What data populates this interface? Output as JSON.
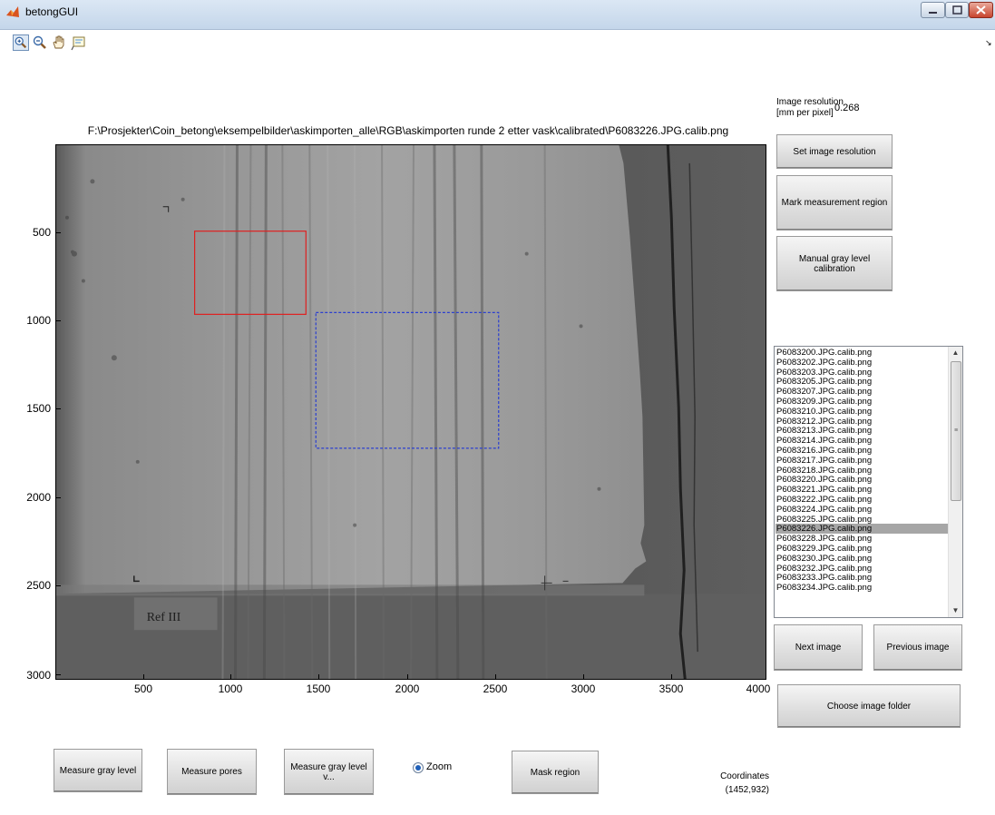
{
  "window": {
    "title": "betongGUI",
    "controls": [
      "minimize-icon",
      "maximize-icon",
      "close-icon"
    ]
  },
  "toolbar": {
    "tools": [
      "zoom-in-icon",
      "zoom-out-icon",
      "pan-hand-icon",
      "data-cursor-icon"
    ],
    "dock_arrow": "↘"
  },
  "image": {
    "path": "F:\\Prosjekter\\Coin_betong\\eksempelbilder\\askimporten_alle\\RGB\\askimporten runde 2 etter vask\\calibrated\\P6083226.JPG.calib.png",
    "sample_label": "Ref III",
    "y_ticks": [
      "500",
      "1000",
      "1500",
      "2000",
      "2500",
      "3000"
    ],
    "x_ticks": [
      "500",
      "1000",
      "1500",
      "2000",
      "2500",
      "3000",
      "3500",
      "4000"
    ],
    "region_colors": {
      "measurement": "#e02020",
      "selection": "#2b3fd0"
    }
  },
  "resolution": {
    "label_line1": "Image resolution",
    "label_line2": "[mm per pixel]",
    "value": "0.268"
  },
  "buttons": {
    "set_resolution": "Set image resolution",
    "mark_region": "Mark measurement region",
    "manual_calibration": "Manual gray level calibration",
    "next_image": "Next image",
    "previous_image": "Previous image",
    "choose_folder": "Choose image folder",
    "measure_gray": "Measure gray level",
    "measure_pores": "Measure pores",
    "measure_gray_v": "Measure gray level v...",
    "mask_region": "Mask region"
  },
  "file_list": {
    "selected": "P6083226.JPG.calib.png",
    "items": [
      "P6083200.JPG.calib.png",
      "P6083202.JPG.calib.png",
      "P6083203.JPG.calib.png",
      "P6083205.JPG.calib.png",
      "P6083207.JPG.calib.png",
      "P6083209.JPG.calib.png",
      "P6083210.JPG.calib.png",
      "P6083212.JPG.calib.png",
      "P6083213.JPG.calib.png",
      "P6083214.JPG.calib.png",
      "P6083216.JPG.calib.png",
      "P6083217.JPG.calib.png",
      "P6083218.JPG.calib.png",
      "P6083220.JPG.calib.png",
      "P6083221.JPG.calib.png",
      "P6083222.JPG.calib.png",
      "P6083224.JPG.calib.png",
      "P6083225.JPG.calib.png",
      "P6083226.JPG.calib.png",
      "P6083228.JPG.calib.png",
      "P6083229.JPG.calib.png",
      "P6083230.JPG.calib.png",
      "P6083232.JPG.calib.png",
      "P6083233.JPG.calib.png",
      "P6083234.JPG.calib.png"
    ]
  },
  "zoom_radio": {
    "label": "Zoom",
    "checked": true
  },
  "coordinates": {
    "label": "Coordinates",
    "value": "(1452,932)"
  }
}
